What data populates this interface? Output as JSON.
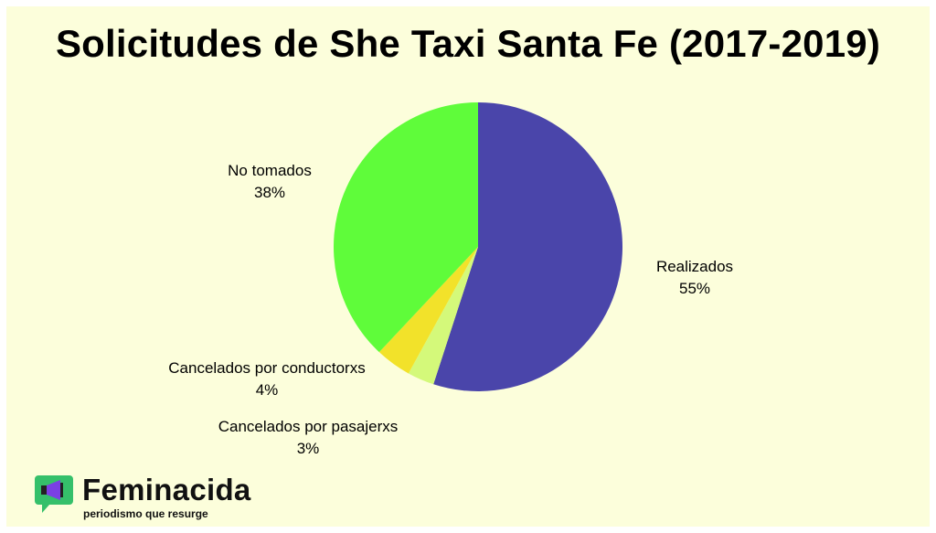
{
  "brand": {
    "name": "Feminacida",
    "tagline": "periodismo que resurge"
  },
  "colors": {
    "background": "#fcfedb",
    "realizados": "#4a45aa",
    "cancelados_pasajerxs": "#d4f97a",
    "cancelados_conductorxs": "#f2e22a",
    "no_tomados": "#5ffc3a"
  },
  "chart_data": {
    "type": "pie",
    "title": "Solicitudes de She Taxi Santa Fe (2017-2019)",
    "slices": [
      {
        "label": "Realizados",
        "value": 55,
        "display": "55%",
        "color": "#4a45aa"
      },
      {
        "label": "Cancelados por pasajerxs",
        "value": 3,
        "display": "3%",
        "color": "#d4f97a"
      },
      {
        "label": "Cancelados por conductorxs",
        "value": 4,
        "display": "4%",
        "color": "#f2e22a"
      },
      {
        "label": "No tomados",
        "value": 38,
        "display": "38%",
        "color": "#5ffc3a"
      }
    ],
    "start_angle": "top",
    "direction": "clockwise"
  }
}
